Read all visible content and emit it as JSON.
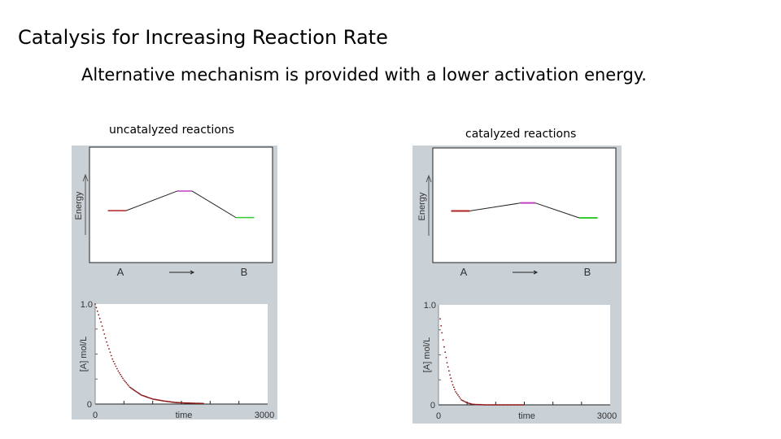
{
  "slide": {
    "title": "Catalysis for Increasing Reaction Rate",
    "subtitle": "Alternative mechanism is provided with a lower activation energy."
  },
  "chart_data": [
    {
      "type": "line",
      "caption": "uncatalyzed reactions",
      "panel": "energy-diagram",
      "ylabel": "Energy",
      "x_labels": {
        "start": "A",
        "arrow": "→",
        "end": "B"
      },
      "levels": {
        "reactant": 0.45,
        "transition_state": 0.62,
        "product": 0.39
      },
      "colors": {
        "reactant": "#b22222",
        "transition_state": "#c040c0",
        "product": "#33cc33",
        "path": "#222222"
      }
    },
    {
      "type": "scatter",
      "caption": "uncatalyzed reactions",
      "panel": "concentration",
      "xlabel": "time",
      "ylabel": "[A] mol/L",
      "xlim": [
        0,
        3000
      ],
      "ylim": [
        0,
        1.0
      ],
      "x_ticks": [
        "0",
        "3000"
      ],
      "y_ticks": [
        "1.0",
        "0"
      ],
      "x": [
        0,
        100,
        200,
        300,
        400,
        500,
        600,
        800,
        1000,
        1200,
        1400,
        1600,
        1900
      ],
      "y": [
        1.0,
        0.82,
        0.62,
        0.45,
        0.33,
        0.24,
        0.17,
        0.09,
        0.05,
        0.03,
        0.015,
        0.01,
        0.005
      ],
      "color": "#8b1a1a"
    },
    {
      "type": "line",
      "caption": "catalyzed reactions",
      "panel": "energy-diagram",
      "ylabel": "Energy",
      "x_labels": {
        "start": "A",
        "arrow": "→",
        "end": "B"
      },
      "levels": {
        "reactant": 0.45,
        "transition_state": 0.52,
        "product": 0.39
      },
      "colors": {
        "reactant": "#b22222",
        "transition_state": "#c040c0",
        "product": "#33cc33",
        "path": "#222222"
      }
    },
    {
      "type": "scatter",
      "caption": "catalyzed reactions",
      "panel": "concentration",
      "xlabel": "time",
      "ylabel": "[A] mol/L",
      "xlim": [
        0,
        3000
      ],
      "ylim": [
        0,
        1.0
      ],
      "x_ticks": [
        "0",
        "3000"
      ],
      "y_ticks": [
        "1.0",
        "0"
      ],
      "x": [
        30,
        60,
        100,
        150,
        200,
        250,
        300,
        400,
        500,
        600,
        800,
        1000,
        1200,
        1500
      ],
      "y": [
        0.86,
        0.72,
        0.58,
        0.42,
        0.3,
        0.2,
        0.13,
        0.05,
        0.02,
        0.005,
        0,
        0,
        0,
        0
      ],
      "color": "#8b1a1a"
    }
  ]
}
